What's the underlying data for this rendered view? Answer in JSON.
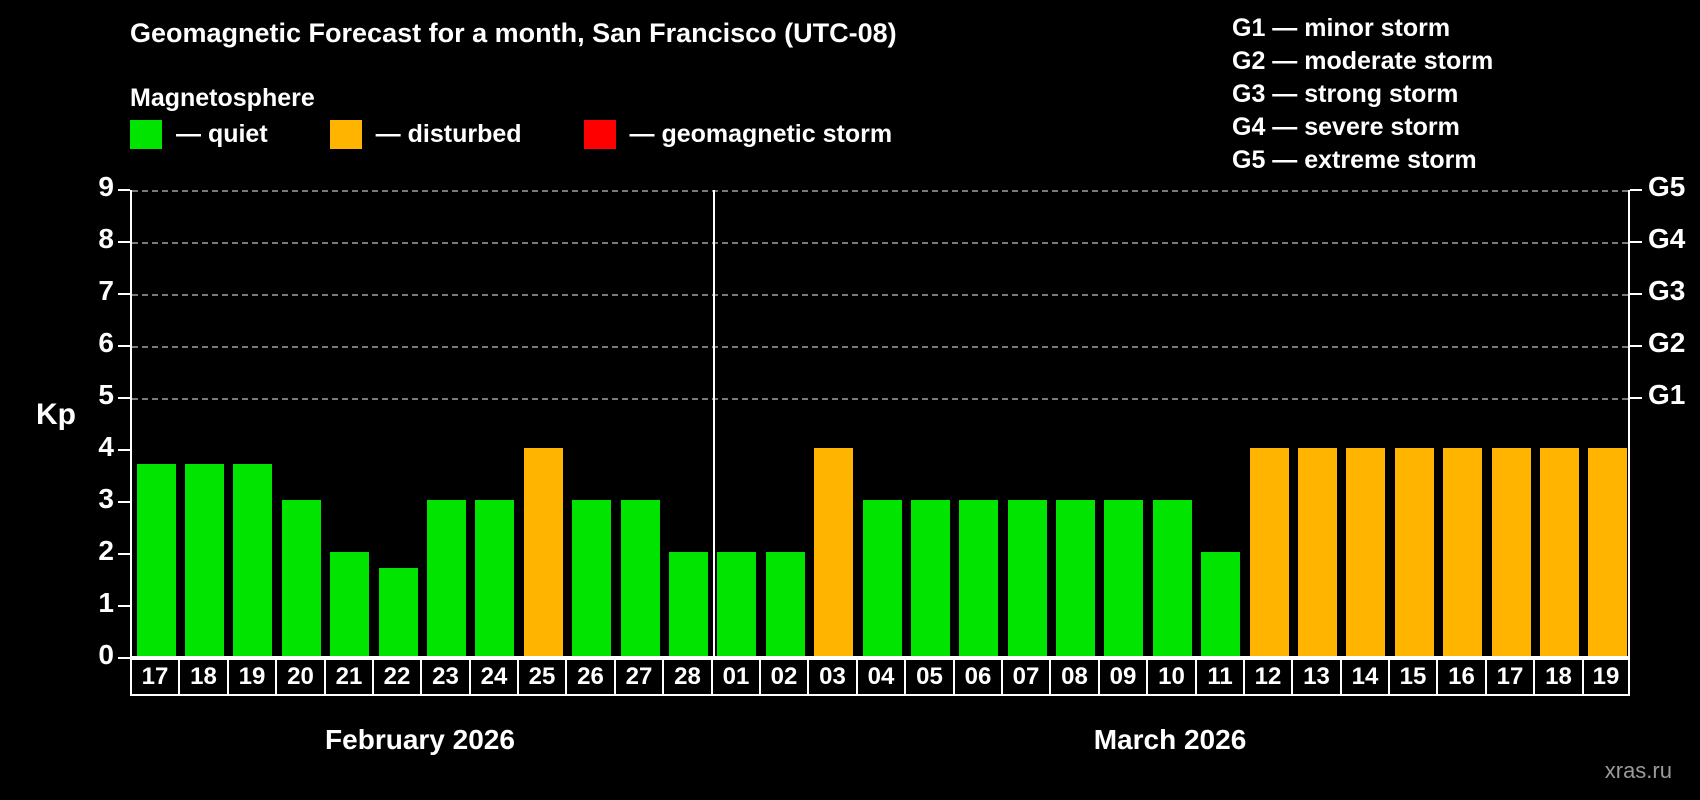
{
  "title": "Geomagnetic Forecast for a month, San Francisco (UTC-08)",
  "subtitle": "Magnetosphere",
  "legend": {
    "items": [
      {
        "name": "quiet",
        "label": "— quiet",
        "color": "#00e400"
      },
      {
        "name": "disturbed",
        "label": "— disturbed",
        "color": "#ffb400"
      },
      {
        "name": "storm",
        "label": "— geomagnetic storm",
        "color": "#ff0000"
      }
    ]
  },
  "g_scale_legend": [
    "G1 — minor storm",
    "G2 — moderate storm",
    "G3 — strong storm",
    "G4 — severe storm",
    "G5 — extreme storm"
  ],
  "watermark": "xras.ru",
  "chart_data": {
    "type": "bar",
    "title": "Geomagnetic Forecast for a month, San Francisco (UTC-08)",
    "ylabel": "Kp",
    "ylim": [
      0,
      9
    ],
    "yticks": [
      0,
      1,
      2,
      3,
      4,
      5,
      6,
      7,
      8,
      9
    ],
    "gridlines_kp": [
      5,
      6,
      7,
      8,
      9
    ],
    "grid": "dashed horizontal lines at G-storm levels",
    "legend_position": "top",
    "right_axis_labels": [
      {
        "label": "G1",
        "kp": 5
      },
      {
        "label": "G2",
        "kp": 6
      },
      {
        "label": "G3",
        "kp": 7
      },
      {
        "label": "G4",
        "kp": 8
      },
      {
        "label": "G5",
        "kp": 9
      }
    ],
    "status_colors": {
      "quiet": "#00e400",
      "disturbed": "#ffb400",
      "storm": "#ff0000"
    },
    "months": [
      {
        "label": "February 2026",
        "days": [
          {
            "day": "17",
            "kp": 3.7,
            "status": "quiet"
          },
          {
            "day": "18",
            "kp": 3.7,
            "status": "quiet"
          },
          {
            "day": "19",
            "kp": 3.7,
            "status": "quiet"
          },
          {
            "day": "20",
            "kp": 3,
            "status": "quiet"
          },
          {
            "day": "21",
            "kp": 2,
            "status": "quiet"
          },
          {
            "day": "22",
            "kp": 1.7,
            "status": "quiet"
          },
          {
            "day": "23",
            "kp": 3,
            "status": "quiet"
          },
          {
            "day": "24",
            "kp": 3,
            "status": "quiet"
          },
          {
            "day": "25",
            "kp": 4,
            "status": "disturbed"
          },
          {
            "day": "26",
            "kp": 3,
            "status": "quiet"
          },
          {
            "day": "27",
            "kp": 3,
            "status": "quiet"
          },
          {
            "day": "28",
            "kp": 2,
            "status": "quiet"
          }
        ]
      },
      {
        "label": "March 2026",
        "days": [
          {
            "day": "01",
            "kp": 2,
            "status": "quiet"
          },
          {
            "day": "02",
            "kp": 2,
            "status": "quiet"
          },
          {
            "day": "03",
            "kp": 4,
            "status": "disturbed"
          },
          {
            "day": "04",
            "kp": 3,
            "status": "quiet"
          },
          {
            "day": "05",
            "kp": 3,
            "status": "quiet"
          },
          {
            "day": "06",
            "kp": 3,
            "status": "quiet"
          },
          {
            "day": "07",
            "kp": 3,
            "status": "quiet"
          },
          {
            "day": "08",
            "kp": 3,
            "status": "quiet"
          },
          {
            "day": "09",
            "kp": 3,
            "status": "quiet"
          },
          {
            "day": "10",
            "kp": 3,
            "status": "quiet"
          },
          {
            "day": "11",
            "kp": 2,
            "status": "quiet"
          },
          {
            "day": "12",
            "kp": 4,
            "status": "disturbed"
          },
          {
            "day": "13",
            "kp": 4,
            "status": "disturbed"
          },
          {
            "day": "14",
            "kp": 4,
            "status": "disturbed"
          },
          {
            "day": "15",
            "kp": 4,
            "status": "disturbed"
          },
          {
            "day": "16",
            "kp": 4,
            "status": "disturbed"
          },
          {
            "day": "17",
            "kp": 4,
            "status": "disturbed"
          },
          {
            "day": "18",
            "kp": 4,
            "status": "disturbed"
          },
          {
            "day": "19",
            "kp": 4,
            "status": "disturbed"
          }
        ]
      }
    ]
  }
}
